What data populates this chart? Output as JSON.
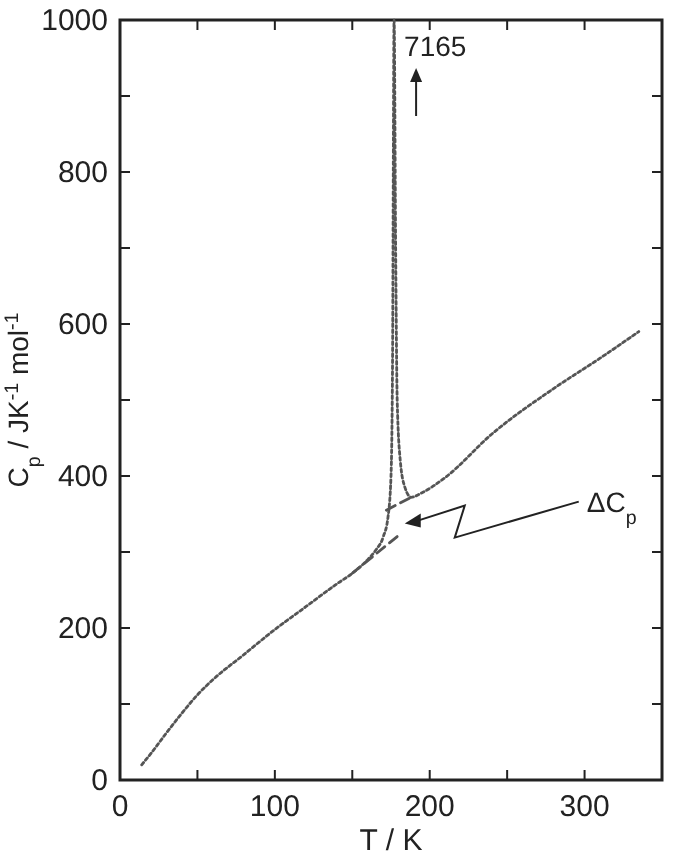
{
  "chart_data": {
    "type": "line",
    "xlabel": "T / K",
    "ylabel": "C$_{p}$ / JK$^{-1}$ mol$^{-1}$",
    "xlim": [
      0,
      350
    ],
    "ylim": [
      0,
      1000
    ],
    "xticks": [
      0,
      {
        "value": 50,
        "label": null
      },
      100,
      {
        "value": 150,
        "label": null
      },
      200,
      {
        "value": 250,
        "label": null
      },
      300
    ],
    "yticks": [
      0,
      {
        "value": 100,
        "label": null
      },
      200,
      {
        "value": 300,
        "label": null
      },
      400,
      {
        "value": 500,
        "label": null
      },
      600,
      {
        "value": 700,
        "label": null
      },
      800,
      {
        "value": 900,
        "label": null
      },
      1000
    ],
    "grid": false,
    "series": [
      {
        "color": "#555555",
        "line_style": "dotted",
        "x": [
          14,
          20,
          30,
          40,
          50,
          60,
          80,
          100,
          120,
          140,
          150,
          160,
          165,
          170,
          173,
          175,
          176,
          177,
          178,
          179,
          181,
          184,
          188,
          195,
          210,
          240,
          280,
          310,
          335
        ],
        "values": [
          20,
          35,
          62,
          88,
          112,
          132,
          165,
          198,
          228,
          258,
          272,
          290,
          302,
          320,
          345,
          400,
          550,
          1000,
          700,
          500,
          420,
          385,
          372,
          378,
          398,
          455,
          515,
          555,
          590
        ]
      },
      {
        "color": "#555555",
        "line_style": "dashed",
        "x": [
          150,
          180
        ],
        "values": [
          272,
          322
        ]
      },
      {
        "color": "#555555",
        "line_style": "dashed",
        "x": [
          172,
          188
        ],
        "values": [
          355,
          372
        ]
      }
    ],
    "annotations": [
      {
        "text": "7165",
        "x": 177,
        "y": 1000
      },
      {
        "text": "ΔC$_{p}$",
        "x": 180,
        "y": 340
      }
    ]
  }
}
